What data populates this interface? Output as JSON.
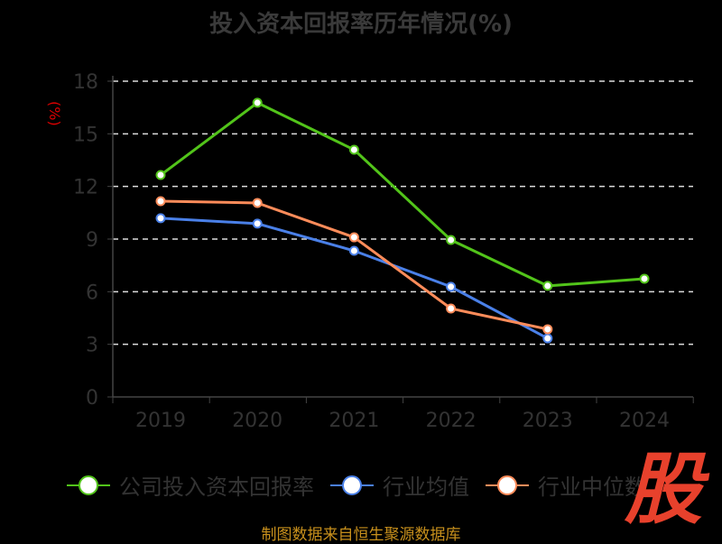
{
  "chart_data": {
    "type": "line",
    "title": "投入资本回报率历年情况(%)",
    "ylabel": "(%)",
    "xlabel": "",
    "categories": [
      "2019",
      "2020",
      "2021",
      "2022",
      "2023",
      "2024"
    ],
    "ylim": [
      0,
      18
    ],
    "yticks": [
      "0",
      "3",
      "6",
      "9",
      "12",
      "15",
      "18"
    ],
    "grid": true,
    "legend_position": "bottom",
    "series": [
      {
        "name": "公司投入资本回报率",
        "color": "#52c41a",
        "values": [
          12.65,
          16.77,
          14.09,
          8.95,
          6.33,
          6.74
        ]
      },
      {
        "name": "行业均值",
        "color": "#4a80e8",
        "values": [
          10.19,
          9.88,
          8.33,
          6.28,
          3.34,
          null
        ]
      },
      {
        "name": "行业中位数",
        "color": "#ff8c5a",
        "values": [
          11.16,
          11.06,
          9.1,
          5.04,
          3.86,
          null
        ]
      }
    ]
  },
  "source": "制图数据来自恒生聚源数据库",
  "logo_text": "股"
}
